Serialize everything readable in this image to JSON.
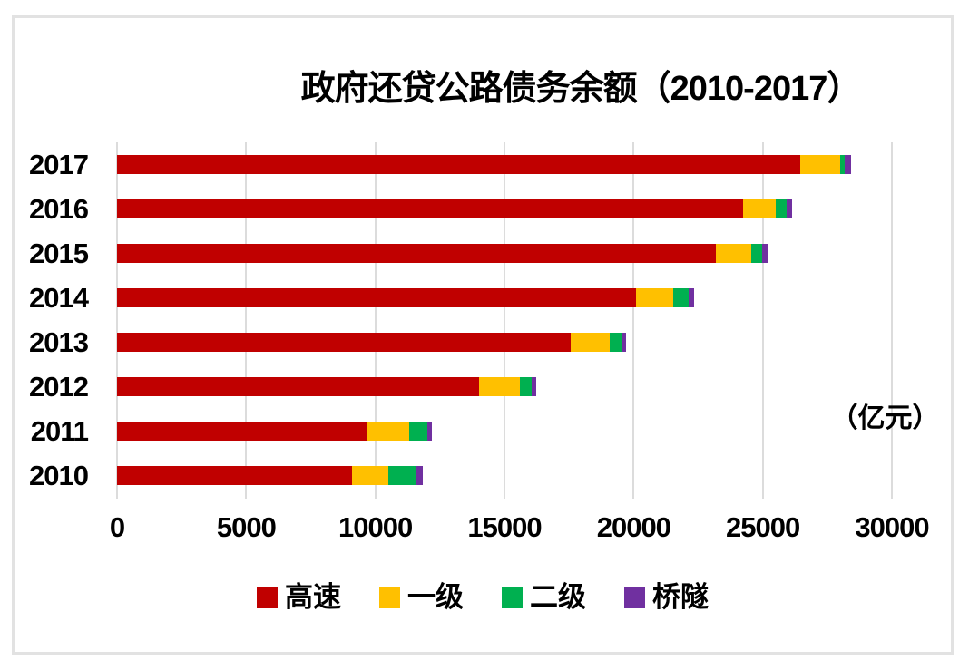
{
  "chart_data": {
    "type": "bar",
    "orientation": "horizontal",
    "stacked": true,
    "title": "政府还贷公路债务余额（2010-2017）",
    "unit_label": "（亿元）",
    "categories": [
      "2017",
      "2016",
      "2015",
      "2014",
      "2013",
      "2012",
      "2011",
      "2010"
    ],
    "series": [
      {
        "name": "高速",
        "color": "#C00000",
        "values": [
          26450,
          24250,
          23200,
          20090,
          17580,
          14030,
          9690,
          9100
        ]
      },
      {
        "name": "一级",
        "color": "#FFC000",
        "values": [
          1550,
          1260,
          1370,
          1440,
          1490,
          1560,
          1620,
          1405
        ]
      },
      {
        "name": "二级",
        "color": "#00B050",
        "values": [
          175,
          410,
          410,
          610,
          500,
          470,
          690,
          1090
        ]
      },
      {
        "name": "桥隧",
        "color": "#7030A0",
        "values": [
          235,
          230,
          210,
          185,
          140,
          165,
          185,
          235
        ]
      }
    ],
    "totals": [
      28410,
      26150,
      25190,
      22325,
      19710,
      16225,
      12185,
      11830
    ],
    "x_ticks": [
      0,
      5000,
      10000,
      15000,
      20000,
      25000,
      30000
    ],
    "xlim": [
      0,
      30000
    ],
    "grid": "vertical",
    "legend_position": "bottom",
    "colors": {
      "grid": "#dcdcdc",
      "frame_border": "#e2e2e2",
      "text": "#000000",
      "background": "#ffffff"
    }
  }
}
